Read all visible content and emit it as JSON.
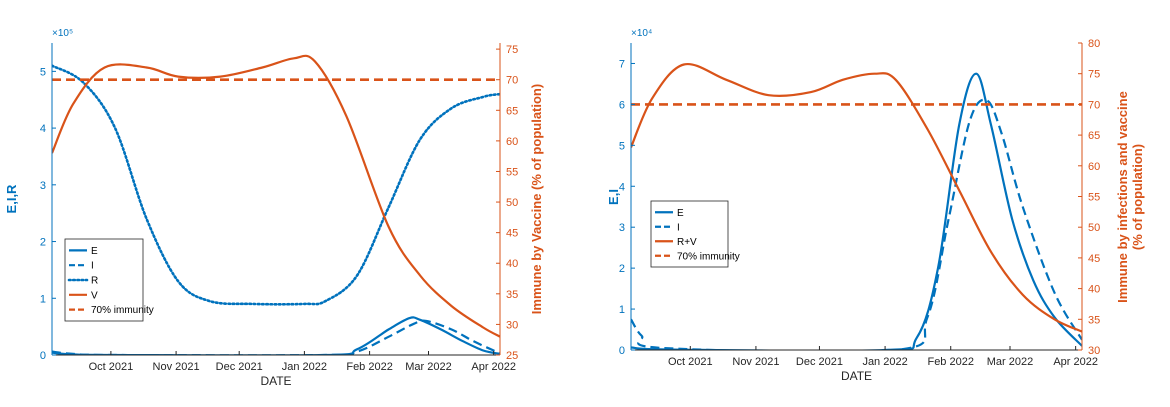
{
  "colors": {
    "blue": "#0072BD",
    "orange": "#D95319",
    "axis": "#262626"
  },
  "chart_data": [
    {
      "type": "line",
      "title": "",
      "xlabel": "DATE",
      "ylabel_left": "E,I,R",
      "ylabel_right": "Immune by Vaccine (% of population)",
      "left_multiplier": "×10⁵",
      "x_ticks": [
        "Oct 2021",
        "Nov 2021",
        "Dec 2021",
        "Jan 2022",
        "Feb 2022",
        "Mar 2022",
        "Apr 2022"
      ],
      "x_range_days": [
        0,
        213
      ],
      "x_tick_days": [
        28,
        59,
        89,
        120,
        151,
        179,
        210
      ],
      "ylim_left": [
        0,
        5.5
      ],
      "yticks_left": [
        "0",
        "1",
        "2",
        "3",
        "4",
        "5"
      ],
      "ylim_right": [
        25,
        76
      ],
      "yticks_right": [
        "25",
        "30",
        "35",
        "40",
        "45",
        "50",
        "55",
        "60",
        "65",
        "70",
        "75"
      ],
      "legend_position": "lower-left",
      "series": [
        {
          "name": "E",
          "axis": "left",
          "style": "solid",
          "color": "#0072BD",
          "points": [
            [
              0,
              0.04
            ],
            [
              10,
              0.01
            ],
            [
              30,
              0
            ],
            [
              130,
              0
            ],
            [
              145,
              0.1
            ],
            [
              160,
              0.45
            ],
            [
              170,
              0.65
            ],
            [
              175,
              0.62
            ],
            [
              185,
              0.45
            ],
            [
              195,
              0.25
            ],
            [
              205,
              0.08
            ],
            [
              213,
              0.02
            ]
          ]
        },
        {
          "name": "I",
          "axis": "left",
          "style": "dashed",
          "color": "#0072BD",
          "points": [
            [
              0,
              0.06
            ],
            [
              10,
              0.02
            ],
            [
              30,
              0
            ],
            [
              130,
              0
            ],
            [
              145,
              0.06
            ],
            [
              160,
              0.32
            ],
            [
              172,
              0.55
            ],
            [
              178,
              0.6
            ],
            [
              190,
              0.45
            ],
            [
              200,
              0.25
            ],
            [
              210,
              0.08
            ],
            [
              213,
              0.04
            ]
          ]
        },
        {
          "name": "R",
          "axis": "left",
          "style": "dotted",
          "color": "#0072BD",
          "points": [
            [
              0,
              5.1
            ],
            [
              15,
              4.8
            ],
            [
              30,
              4.0
            ],
            [
              45,
              2.4
            ],
            [
              60,
              1.3
            ],
            [
              75,
              0.95
            ],
            [
              95,
              0.9
            ],
            [
              120,
              0.9
            ],
            [
              130,
              0.95
            ],
            [
              145,
              1.4
            ],
            [
              160,
              2.6
            ],
            [
              175,
              3.8
            ],
            [
              190,
              4.35
            ],
            [
              205,
              4.55
            ],
            [
              213,
              4.6
            ]
          ]
        },
        {
          "name": "V",
          "axis": "right",
          "style": "solid",
          "color": "#D95319",
          "points": [
            [
              0,
              58
            ],
            [
              10,
              66
            ],
            [
              25,
              72
            ],
            [
              45,
              72
            ],
            [
              60,
              70.5
            ],
            [
              80,
              70.5
            ],
            [
              100,
              72
            ],
            [
              115,
              73.5
            ],
            [
              125,
              73
            ],
            [
              140,
              64
            ],
            [
              160,
              46
            ],
            [
              175,
              38
            ],
            [
              190,
              33
            ],
            [
              205,
              29.5
            ],
            [
              213,
              28
            ]
          ]
        },
        {
          "name": "70% immunity",
          "axis": "right",
          "style": "dashed",
          "color": "#D95319",
          "points": [
            [
              0,
              70
            ],
            [
              213,
              70
            ]
          ]
        }
      ]
    },
    {
      "type": "line",
      "title": "",
      "xlabel": "DATE",
      "ylabel_left": "E,I",
      "ylabel_right_lines": [
        "Immune by infections and vaccine",
        "(% of population)"
      ],
      "left_multiplier": "×10⁴",
      "x_ticks": [
        "Oct 2021",
        "Nov 2021",
        "Dec 2021",
        "Jan 2022",
        "Feb 2022",
        "Mar 2022",
        "Apr 2022"
      ],
      "x_range_days": [
        0,
        213
      ],
      "x_tick_days": [
        28,
        59,
        89,
        120,
        151,
        179,
        210
      ],
      "ylim_left": [
        0,
        7.5
      ],
      "yticks_left": [
        "0",
        "1",
        "2",
        "3",
        "4",
        "5",
        "6",
        "7"
      ],
      "ylim_right": [
        30,
        80
      ],
      "yticks_right": [
        "30",
        "35",
        "40",
        "45",
        "50",
        "55",
        "60",
        "65",
        "70",
        "75",
        "80"
      ],
      "legend_position": "center-left",
      "series": [
        {
          "name": "E",
          "axis": "left",
          "style": "solid",
          "color": "#0072BD",
          "points": [
            [
              0,
              0.06
            ],
            [
              20,
              0.01
            ],
            [
              120,
              0
            ],
            [
              135,
              0.3
            ],
            [
              145,
              2.0
            ],
            [
              155,
              5.5
            ],
            [
              163,
              6.75
            ],
            [
              170,
              5.5
            ],
            [
              180,
              3.2
            ],
            [
              190,
              1.7
            ],
            [
              200,
              0.8
            ],
            [
              213,
              0.1
            ]
          ]
        },
        {
          "name": "I",
          "axis": "left",
          "style": "dashed",
          "color": "#0072BD",
          "points": [
            [
              0,
              0.75
            ],
            [
              5,
              0.35
            ],
            [
              15,
              0.05
            ],
            [
              125,
              0
            ],
            [
              140,
              0.8
            ],
            [
              150,
              3.2
            ],
            [
              160,
              5.6
            ],
            [
              168,
              6.1
            ],
            [
              175,
              5.3
            ],
            [
              185,
              3.5
            ],
            [
              200,
              1.4
            ],
            [
              213,
              0.25
            ]
          ]
        },
        {
          "name": "R+V",
          "axis": "right",
          "style": "solid",
          "color": "#D95319",
          "points": [
            [
              0,
              63
            ],
            [
              10,
              71
            ],
            [
              25,
              76.5
            ],
            [
              45,
              74
            ],
            [
              65,
              71.5
            ],
            [
              85,
              72
            ],
            [
              100,
              74
            ],
            [
              115,
              75
            ],
            [
              125,
              74
            ],
            [
              140,
              66
            ],
            [
              155,
              56
            ],
            [
              170,
              46
            ],
            [
              185,
              39
            ],
            [
              200,
              35
            ],
            [
              213,
              33
            ]
          ]
        },
        {
          "name": "70% immunity",
          "axis": "right",
          "style": "dashed",
          "color": "#D95319",
          "points": [
            [
              0,
              70
            ],
            [
              213,
              70
            ]
          ]
        }
      ]
    }
  ]
}
